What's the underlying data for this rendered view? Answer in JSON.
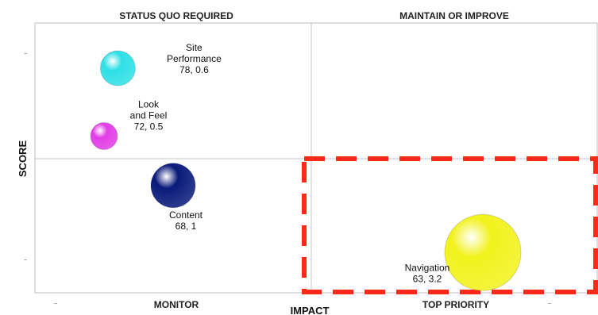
{
  "chart_data": {
    "type": "bubble",
    "quadrants": {
      "top_left": "STATUS QUO REQUIRED",
      "top_right": "MAINTAIN OR IMPROVE",
      "bottom_left": "MONITOR",
      "bottom_right": "TOP PRIORITY"
    },
    "xlabel": "IMPACT",
    "ylabel": "SCORE",
    "xlim": [
      0,
      4
    ],
    "ylim": [
      60,
      82
    ],
    "x_divider": 2,
    "y_divider": 70,
    "points": [
      {
        "name": "Site\nPerformance",
        "value_label": "78, 0.6",
        "x": 0.6,
        "y": 78,
        "size": 22,
        "color": "#2ee0e6"
      },
      {
        "name": "Look\nand Feel",
        "value_label": "72, 0.5",
        "x": 0.5,
        "y": 72,
        "size": 17,
        "color": "#e23ee6"
      },
      {
        "name": "Content",
        "value_label": "68, 1",
        "x": 1.0,
        "y": 68,
        "size": 28,
        "color": "#0a1a7a"
      },
      {
        "name": "Navigation",
        "value_label": "63, 3.2",
        "x": 3.2,
        "y": 63,
        "size": 48,
        "color": "#f2f21c"
      }
    ],
    "highlight_quadrant": "bottom_right",
    "highlight_color": "#ff2a1a",
    "grid": false
  }
}
